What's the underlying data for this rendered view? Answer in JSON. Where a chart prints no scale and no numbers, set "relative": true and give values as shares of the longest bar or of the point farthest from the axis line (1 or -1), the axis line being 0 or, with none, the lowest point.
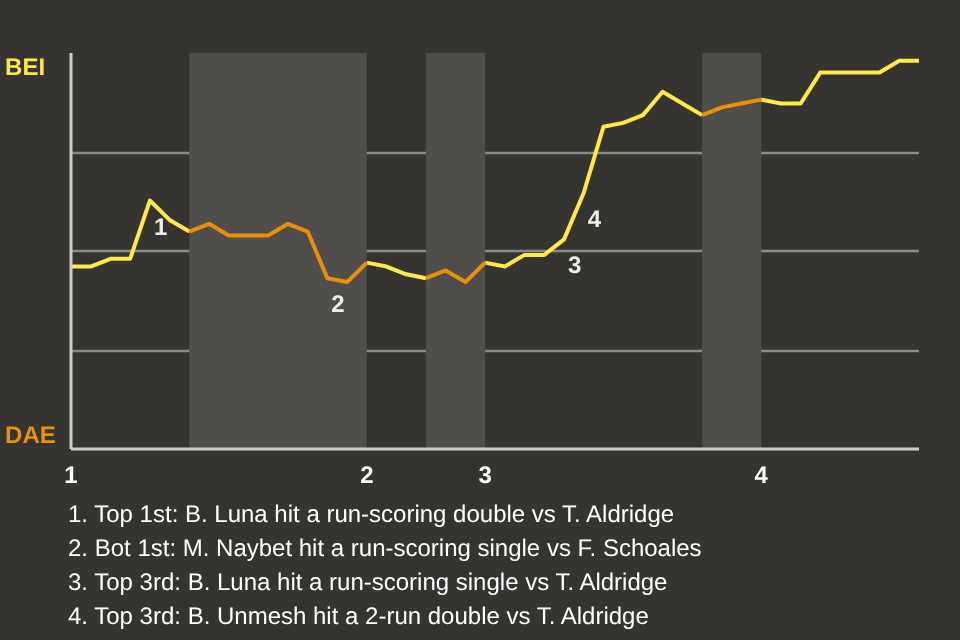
{
  "chart_data": {
    "type": "line",
    "relative": true,
    "categories": [
      "1",
      null,
      null,
      null,
      null,
      null,
      null,
      null,
      null,
      null,
      null,
      null,
      null,
      null,
      null,
      "2",
      null,
      null,
      null,
      null,
      null,
      "3",
      null,
      null,
      null,
      null,
      null,
      null,
      null,
      null,
      null,
      null,
      null,
      null,
      null,
      "4",
      null,
      null,
      null,
      null,
      null,
      null,
      null,
      null
    ],
    "grid": "y",
    "series": [
      {
        "name": "BEI",
        "color": "#ffe84a",
        "values": [
          0.47,
          0.47,
          0.49,
          0.49,
          0.64,
          0.59,
          0.56,
          null,
          null,
          null,
          null,
          null,
          null,
          null,
          null,
          0.48,
          0.47,
          0.45,
          0.44,
          null,
          null,
          0.48,
          0.47,
          0.5,
          0.5,
          0.54,
          0.66,
          0.83,
          0.84,
          0.86,
          0.92,
          0.89,
          0.86,
          null,
          null,
          0.9,
          0.89,
          0.89,
          0.97,
          0.97,
          0.97,
          0.97,
          1,
          1
        ]
      },
      {
        "name": "DAE",
        "color": "#e8900a",
        "values": [
          null,
          null,
          null,
          null,
          null,
          null,
          0.56,
          0.58,
          0.55,
          0.55,
          0.55,
          0.58,
          0.56,
          0.44,
          0.43,
          0.48,
          null,
          null,
          0.44,
          0.46,
          0.43,
          0.48,
          null,
          null,
          null,
          null,
          null,
          null,
          null,
          null,
          null,
          null,
          0.86,
          0.88,
          0.89,
          0.9,
          null,
          null,
          null,
          null,
          null,
          null,
          null,
          null
        ]
      }
    ],
    "annotations": [
      {
        "text": "1",
        "y": 0.64
      },
      {
        "text": "2",
        "y": 0.44
      },
      {
        "text": "3",
        "y": 0.54
      },
      {
        "text": "4",
        "y": 0.66
      },
      "1. Top 1st: B. Luna hit a run-scoring double vs T. Aldridge",
      "2. Bot 1st: M. Naybet hit a run-scoring single vs F. Schoales",
      "3. Top 3rd: B. Luna hit a run-scoring single vs T. Aldridge",
      "4. Top 3rd: B. Unmesh hit a 2-run double vs T. Aldridge"
    ]
  }
}
